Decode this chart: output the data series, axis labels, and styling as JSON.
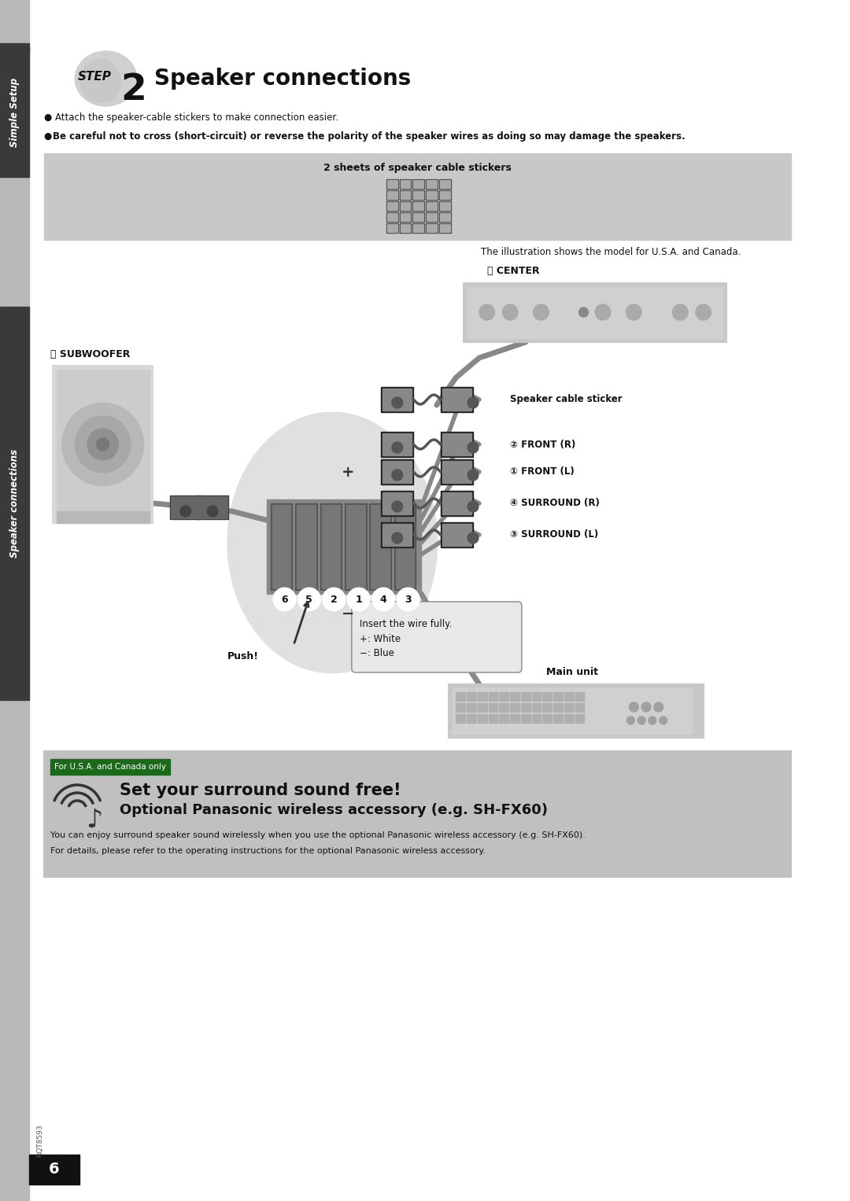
{
  "page_bg": "#ffffff",
  "sidebar_bg": "#b8b8b8",
  "sidebar_dark_bg": "#3a3a3a",
  "sidebar_text_top": "Simple Setup",
  "sidebar_text_bottom": "Speaker connections",
  "title_step_text": "STEP",
  "title_step_num": "2",
  "title_main": "Speaker connections",
  "bullet1": "● Attach the speaker-cable stickers to make connection easier.",
  "bullet2_prefix": "● ",
  "bullet2": "Be careful not to cross (short-circuit) or reverse the polarity of the speaker wires as doing so may damage the speakers.",
  "sticker_box_title": "2 sheets of speaker cable stickers",
  "sticker_box_bg": "#c8c8c8",
  "illustration_caption": "The illustration shows the model for U.S.A. and Canada.",
  "label_center": "ⓔ CENTER",
  "label_subwoofer": "ⓕ SUBWOOFER",
  "label_front_r": "② FRONT (R)",
  "label_front_l": "① FRONT (L)",
  "label_surround_r": "④ SURROUND (R)",
  "label_surround_l": "③ SURROUND (L)",
  "label_speaker_sticker": "Speaker cable sticker",
  "label_main_unit": "Main unit",
  "label_insert": "Insert the wire fully.",
  "label_plus": "+: White",
  "label_minus": "−: Blue",
  "label_push": "Push!",
  "connector_numbers": [
    "6",
    "5",
    "2",
    "1",
    "4",
    "3"
  ],
  "wireless_box_bg": "#c0c0c0",
  "wireless_label_bg": "#1a6a1a",
  "wireless_label": "For U.S.A. and Canada only",
  "wireless_title1": "Set your surround sound free!",
  "wireless_title2": "Optional Panasonic wireless accessory (e.g. SH-FX60)",
  "wireless_body1": "You can enjoy surround speaker sound wirelessly when you use the optional Panasonic wireless accessory (e.g. SH-FX60).",
  "wireless_body2": "For details, please refer to the operating instructions for the optional Panasonic wireless accessory.",
  "page_number": "6",
  "doc_number": "RQT8593"
}
